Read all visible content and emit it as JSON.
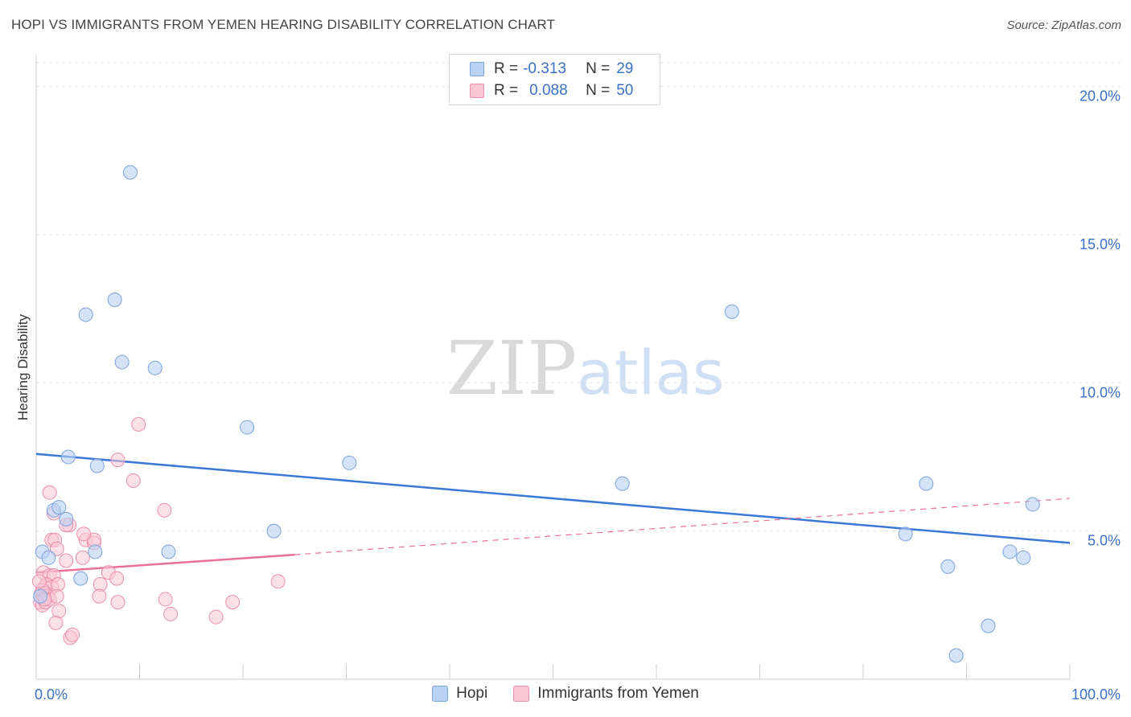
{
  "title": "HOPI VS IMMIGRANTS FROM YEMEN HEARING DISABILITY CORRELATION CHART",
  "source": "Source: ZipAtlas.com",
  "watermark": {
    "zip": "ZIP",
    "atlas": "atlas"
  },
  "colors": {
    "hopi_fill": "#b9d1f3",
    "hopi_stroke": "#7aa3dc",
    "hopi_line": "#3a78d6",
    "yemen_fill": "#f9c6d5",
    "yemen_stroke": "#ea8fab",
    "yemen_line": "#e8709a",
    "axis_text": "#3a70c8",
    "grid": "#e4e4e4"
  },
  "legend": {
    "rows": [
      {
        "r_label": "R =",
        "r_value": "-0.313",
        "n_label": "N =",
        "n_value": "29"
      },
      {
        "r_label": "R =",
        "r_value": "0.088",
        "n_label": "N =",
        "n_value": "50"
      }
    ]
  },
  "chart_data": {
    "type": "scatter",
    "title": "HOPI VS IMMIGRANTS FROM YEMEN HEARING DISABILITY CORRELATION CHART",
    "xlabel": "",
    "ylabel": "Hearing Disability",
    "xlim": [
      0,
      100
    ],
    "ylim": [
      0,
      20.8
    ],
    "x_tick_labels": [
      "0.0%",
      "100.0%"
    ],
    "y_ticks": [
      5,
      10,
      15,
      20
    ],
    "y_tick_labels": [
      "5.0%",
      "10.0%",
      "15.0%",
      "20.0%"
    ],
    "grid": true,
    "legend_position": "top-center",
    "series": [
      {
        "name": "Hopi",
        "points": [
          [
            9.1,
            17.1
          ],
          [
            7.6,
            12.8
          ],
          [
            4.8,
            12.3
          ],
          [
            8.3,
            10.7
          ],
          [
            11.5,
            10.5
          ],
          [
            67.3,
            12.4
          ],
          [
            20.4,
            8.5
          ],
          [
            3.1,
            7.5
          ],
          [
            5.9,
            7.2
          ],
          [
            30.3,
            7.3
          ],
          [
            56.7,
            6.6
          ],
          [
            86.1,
            6.6
          ],
          [
            1.7,
            5.7
          ],
          [
            2.2,
            5.8
          ],
          [
            2.9,
            5.4
          ],
          [
            96.4,
            5.9
          ],
          [
            23.0,
            5.0
          ],
          [
            84.1,
            4.9
          ],
          [
            0.6,
            4.3
          ],
          [
            1.2,
            4.1
          ],
          [
            5.7,
            4.3
          ],
          [
            12.8,
            4.3
          ],
          [
            94.2,
            4.3
          ],
          [
            95.5,
            4.1
          ],
          [
            88.2,
            3.8
          ],
          [
            4.3,
            3.4
          ],
          [
            92.1,
            1.8
          ],
          [
            89.0,
            0.8
          ],
          [
            0.4,
            2.8
          ]
        ],
        "trend": {
          "x": [
            0,
            100
          ],
          "y": [
            7.6,
            4.6
          ]
        }
      },
      {
        "name": "Immigrants from Yemen",
        "points": [
          [
            1.3,
            6.3
          ],
          [
            1.7,
            5.6
          ],
          [
            3.2,
            5.2
          ],
          [
            2.9,
            5.2
          ],
          [
            1.5,
            4.7
          ],
          [
            1.8,
            4.7
          ],
          [
            4.8,
            4.7
          ],
          [
            5.6,
            4.6
          ],
          [
            5.6,
            4.7
          ],
          [
            4.6,
            4.9
          ],
          [
            2.0,
            4.4
          ],
          [
            2.9,
            4.0
          ],
          [
            4.5,
            4.1
          ],
          [
            9.9,
            8.6
          ],
          [
            7.9,
            7.4
          ],
          [
            9.4,
            6.7
          ],
          [
            12.4,
            5.7
          ],
          [
            0.7,
            3.6
          ],
          [
            1.3,
            3.5
          ],
          [
            1.7,
            3.5
          ],
          [
            0.8,
            3.1
          ],
          [
            1.0,
            3.2
          ],
          [
            1.5,
            3.1
          ],
          [
            2.1,
            3.2
          ],
          [
            0.5,
            2.9
          ],
          [
            0.7,
            2.8
          ],
          [
            0.9,
            2.9
          ],
          [
            1.1,
            2.8
          ],
          [
            0.4,
            2.6
          ],
          [
            0.6,
            2.5
          ],
          [
            0.9,
            2.6
          ],
          [
            1.3,
            2.7
          ],
          [
            2.0,
            2.8
          ],
          [
            0.6,
            3.0
          ],
          [
            0.8,
            2.7
          ],
          [
            7.0,
            3.6
          ],
          [
            6.2,
            3.2
          ],
          [
            7.8,
            3.4
          ],
          [
            6.1,
            2.8
          ],
          [
            7.9,
            2.6
          ],
          [
            12.5,
            2.7
          ],
          [
            23.4,
            3.3
          ],
          [
            19.0,
            2.6
          ],
          [
            13.0,
            2.2
          ],
          [
            17.4,
            2.1
          ],
          [
            2.2,
            2.3
          ],
          [
            1.9,
            1.9
          ],
          [
            3.3,
            1.4
          ],
          [
            3.5,
            1.5
          ],
          [
            0.3,
            3.3
          ]
        ],
        "trend": {
          "x": [
            0,
            25
          ],
          "y": [
            3.6,
            4.2
          ]
        },
        "trend_extension": {
          "x": [
            25,
            100
          ],
          "y": [
            4.2,
            6.1
          ]
        }
      }
    ]
  },
  "bottom_legend": {
    "items": [
      "Hopi",
      "Immigrants from Yemen"
    ]
  }
}
